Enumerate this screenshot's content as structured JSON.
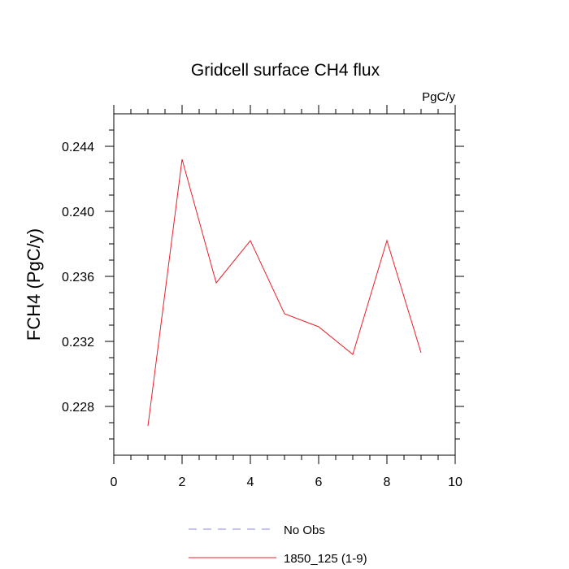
{
  "chart_data": {
    "type": "line",
    "title": "Gridcell surface CH4 flux",
    "units_label": "PgC/y",
    "ylabel": "FCH4  (PgC/y)",
    "xlabel": "",
    "xlim": [
      0,
      10
    ],
    "ylim": [
      0.225,
      0.246
    ],
    "x_ticks": [
      0,
      2,
      4,
      6,
      8,
      10
    ],
    "x_tick_labels": [
      "0",
      "2",
      "4",
      "6",
      "8",
      "10"
    ],
    "y_ticks": [
      0.228,
      0.232,
      0.236,
      0.24,
      0.244
    ],
    "y_tick_labels": [
      "0.228",
      "0.232",
      "0.236",
      "0.240",
      "0.244"
    ],
    "grid": false,
    "legend_position": "bottom",
    "legend": [
      {
        "name": "No Obs",
        "color": "#8a8ae6",
        "style": "dashed"
      },
      {
        "name": "1850_125 (1-9)",
        "color": "#e8202a",
        "style": "solid"
      }
    ],
    "series": [
      {
        "name": "1850_125 (1-9)",
        "color": "#e8202a",
        "x": [
          1,
          2,
          3,
          4,
          5,
          6,
          7,
          8,
          9
        ],
        "y": [
          0.2268,
          0.2432,
          0.2356,
          0.2382,
          0.2337,
          0.2329,
          0.2312,
          0.2382,
          0.2313
        ]
      }
    ]
  }
}
